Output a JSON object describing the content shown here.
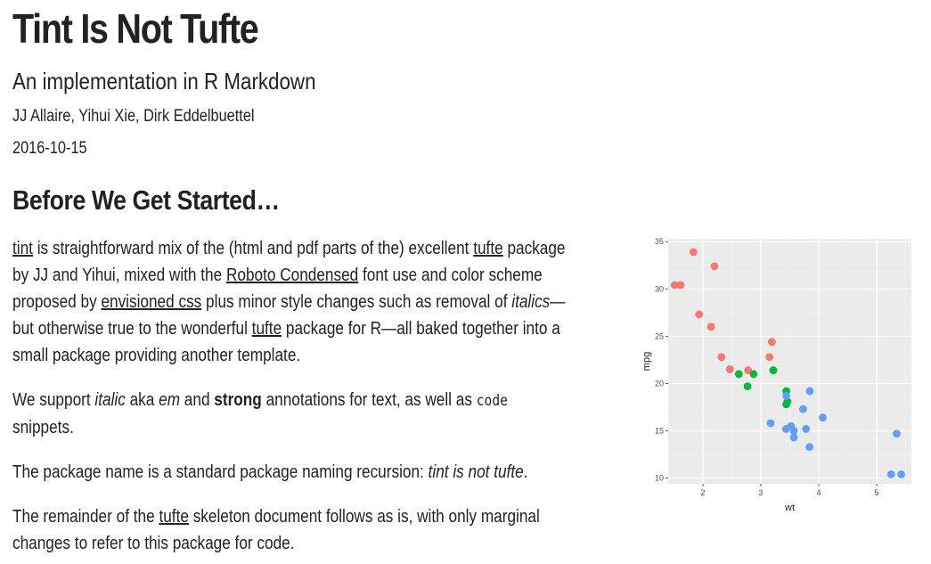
{
  "doc": {
    "title": "Tint Is Not Tufte",
    "subtitle": "An implementation in R Markdown",
    "authors": "JJ Allaire, Yihui Xie, Dirk Eddelbuettel",
    "date": "2016-10-15",
    "section_title": "Before We Get Started…"
  },
  "p1": {
    "link_tint": "tint",
    "t1": " is straightforward mix of the (html and pdf parts of the) excellent ",
    "link_tufte1": "tufte",
    "t2": " package by JJ and Yihui, mixed with the ",
    "link_roboto": "Roboto Condensed",
    "t3": " font use and color scheme proposed by ",
    "link_envisioned": "envisioned css",
    "t4": " plus minor style changes such as removal of ",
    "em_italics": "italics",
    "t5": "—but otherwise true to the wonderful ",
    "link_tufte2": "tufte",
    "t6": " package for R—all baked together into a small package providing another template."
  },
  "p2": {
    "t1": "We support ",
    "em_italic": "italic",
    "t2": " aka ",
    "em_em": "em",
    "t3": " and ",
    "strong": "strong",
    "t4": " annotations for text, as well as ",
    "code": "code",
    "t5": " snippets."
  },
  "p3": {
    "t1": "The package name is a standard package naming recursion: ",
    "em": "tint is not tufte",
    "t2": "."
  },
  "p4": {
    "t1": "The remainder of the ",
    "link_tufte": "tufte",
    "t2": " skeleton document follows as is, with only marginal changes to refer to this package for code."
  },
  "chart_data": {
    "type": "scatter",
    "xlabel": "wt",
    "ylabel": "mpg",
    "xlim": [
      1.4,
      5.6
    ],
    "ylim": [
      9.4,
      35.3
    ],
    "xticks": [
      2,
      3,
      4,
      5
    ],
    "yticks": [
      10,
      15,
      20,
      25,
      30,
      35
    ],
    "grid": true,
    "panel_color": "#ebebeb",
    "series": [
      {
        "color": "#f8766d",
        "x": [
          1.835,
          2.2,
          1.513,
          1.615,
          1.935,
          2.14,
          2.32,
          2.465,
          2.78,
          3.15,
          3.19
        ],
        "y": [
          33.9,
          32.4,
          30.4,
          30.4,
          27.3,
          26.0,
          22.8,
          21.5,
          21.4,
          22.8,
          24.4
        ]
      },
      {
        "color": "#00ba38",
        "x": [
          2.62,
          2.875,
          2.77,
          3.215,
          3.44,
          3.44,
          3.46
        ],
        "y": [
          21.0,
          21.0,
          19.7,
          21.4,
          19.2,
          17.8,
          18.1
        ]
      },
      {
        "color": "#619cff",
        "x": [
          3.57,
          3.73,
          3.78,
          3.52,
          3.435,
          3.84,
          3.845,
          3.44,
          4.07,
          3.17,
          3.57,
          5.25,
          5.424,
          5.345
        ],
        "y": [
          14.3,
          17.3,
          15.2,
          15.5,
          15.2,
          13.3,
          19.2,
          18.7,
          16.4,
          15.8,
          15.0,
          10.4,
          10.4,
          14.7
        ]
      }
    ]
  }
}
